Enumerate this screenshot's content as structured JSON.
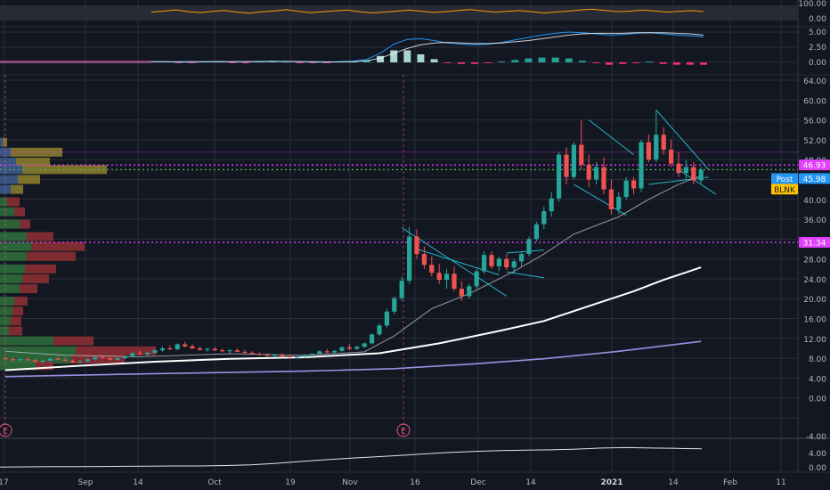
{
  "colors": {
    "background": "#131722",
    "grid": "#2a2e39",
    "axis_text": "#b2b5be",
    "up": "#26a69a",
    "down": "#ef5350",
    "hl_magenta": "#e040fb",
    "hl_green": "#4caf50",
    "hl_blue": "#2196f3",
    "hl_yellow": "#ffeb3b",
    "pattern": "#26c6da",
    "ma_white": "#ffffff",
    "ma_purple": "#9c8fe0",
    "rsi": "#ff9800",
    "macd": "#2196f3",
    "signal": "#ffffff"
  },
  "chart_data": {
    "type": "candlestick",
    "symbol": "BLNK",
    "x_tick_labels": [
      "17",
      "Sep",
      "14",
      "Oct",
      "19",
      "Nov",
      "16",
      "Dec",
      "14",
      "2021",
      "14",
      "Feb",
      "11"
    ],
    "price_axis_ticks": [
      "64.00",
      "60.00",
      "56.00",
      "52.00",
      "48.00",
      "44.00",
      "40.00",
      "36.00",
      "32.00",
      "28.00",
      "24.00",
      "20.00",
      "16.00",
      "12.00",
      "8.00",
      "4.00",
      "0.00",
      "-4.00"
    ],
    "price_ylim": [
      -4,
      64
    ],
    "rsi_axis_ticks": [
      "100.00",
      "0.00"
    ],
    "macd_axis_ticks": [
      "5.00",
      "2.50",
      "0.00"
    ],
    "bottom_axis_ticks": [
      "4.00",
      "0.00"
    ],
    "price_labels": [
      {
        "text": "46.93",
        "value": 46.93,
        "kind": "magenta"
      },
      {
        "text": "Post",
        "kind": "blue_tag"
      },
      {
        "text": "45.98",
        "value": 45.98,
        "kind": "blue"
      },
      {
        "text": "BLNK",
        "value": 43.5,
        "kind": "yellow"
      },
      {
        "text": "31.34",
        "value": 31.34,
        "kind": "magenta"
      }
    ],
    "horizontal_levels": [
      {
        "value": 46.93,
        "color": "#e040fb",
        "style": "dotted"
      },
      {
        "value": 45.98,
        "color": "#4caf50",
        "style": "dotted"
      },
      {
        "value": 31.34,
        "color": "#e040fb",
        "style": "dotted"
      },
      {
        "value": 49.5,
        "color": "#e040fb",
        "style": "faint"
      }
    ],
    "earnings_markers": [
      "E",
      "E"
    ],
    "candles": [
      [
        8.0,
        8.3,
        7.6,
        7.8
      ],
      [
        7.8,
        8.1,
        7.4,
        7.6
      ],
      [
        7.6,
        8.0,
        7.3,
        7.8
      ],
      [
        7.8,
        8.2,
        7.5,
        7.6
      ],
      [
        7.6,
        7.9,
        7.2,
        7.3
      ],
      [
        7.3,
        7.7,
        7.0,
        7.5
      ],
      [
        7.5,
        8.0,
        7.3,
        7.9
      ],
      [
        7.9,
        8.3,
        7.6,
        7.7
      ],
      [
        7.7,
        8.1,
        7.4,
        7.5
      ],
      [
        7.5,
        7.8,
        7.1,
        7.2
      ],
      [
        7.2,
        7.6,
        6.9,
        7.4
      ],
      [
        7.4,
        7.9,
        7.2,
        7.8
      ],
      [
        7.8,
        8.4,
        7.6,
        8.2
      ],
      [
        8.2,
        8.6,
        7.9,
        8.0
      ],
      [
        8.0,
        8.3,
        7.6,
        7.7
      ],
      [
        7.7,
        8.1,
        7.5,
        8.0
      ],
      [
        8.0,
        8.5,
        7.8,
        8.4
      ],
      [
        8.4,
        9.2,
        8.2,
        9.0
      ],
      [
        9.0,
        9.5,
        8.6,
        8.8
      ],
      [
        8.8,
        9.3,
        8.5,
        9.1
      ],
      [
        9.1,
        9.8,
        8.9,
        9.6
      ],
      [
        9.6,
        10.4,
        9.3,
        10.0
      ],
      [
        10.0,
        10.6,
        9.6,
        9.8
      ],
      [
        9.8,
        11.0,
        9.6,
        10.8
      ],
      [
        10.8,
        11.3,
        10.2,
        10.4
      ],
      [
        10.4,
        10.8,
        9.8,
        10.0
      ],
      [
        10.0,
        10.4,
        9.5,
        9.7
      ],
      [
        9.7,
        10.1,
        9.3,
        9.9
      ],
      [
        9.9,
        10.3,
        9.5,
        9.6
      ],
      [
        9.6,
        10.0,
        9.2,
        9.4
      ],
      [
        9.4,
        9.8,
        9.0,
        9.6
      ],
      [
        9.6,
        10.0,
        9.2,
        9.3
      ],
      [
        9.3,
        9.7,
        8.9,
        9.1
      ],
      [
        9.1,
        9.4,
        8.7,
        8.9
      ],
      [
        8.9,
        9.2,
        8.5,
        8.7
      ],
      [
        8.7,
        9.0,
        8.3,
        8.5
      ],
      [
        8.5,
        8.9,
        8.2,
        8.7
      ],
      [
        8.7,
        9.0,
        8.3,
        8.4
      ],
      [
        8.4,
        8.7,
        8.0,
        8.2
      ],
      [
        8.2,
        8.5,
        7.9,
        8.3
      ],
      [
        8.3,
        8.8,
        8.1,
        8.6
      ],
      [
        8.6,
        9.0,
        8.3,
        8.9
      ],
      [
        8.9,
        9.6,
        8.7,
        9.4
      ],
      [
        9.4,
        9.9,
        9.0,
        9.2
      ],
      [
        9.2,
        9.6,
        8.9,
        9.5
      ],
      [
        9.5,
        10.4,
        9.3,
        10.2
      ],
      [
        10.2,
        10.8,
        9.7,
        9.9
      ],
      [
        9.9,
        10.5,
        9.6,
        10.3
      ],
      [
        10.3,
        11.2,
        10.1,
        11.0
      ],
      [
        11.0,
        13.0,
        10.8,
        12.8
      ],
      [
        12.8,
        15.0,
        12.5,
        14.6
      ],
      [
        14.6,
        18.0,
        14.2,
        17.4
      ],
      [
        17.4,
        20.5,
        16.8,
        20.1
      ],
      [
        20.1,
        24.5,
        19.5,
        23.6
      ],
      [
        23.6,
        34.5,
        23.0,
        32.5
      ],
      [
        32.5,
        34.0,
        28.0,
        29.0
      ],
      [
        29.0,
        30.5,
        26.0,
        26.8
      ],
      [
        26.8,
        28.5,
        24.5,
        25.2
      ],
      [
        25.2,
        27.0,
        23.0,
        23.8
      ],
      [
        23.8,
        26.0,
        22.0,
        25.0
      ],
      [
        25.0,
        26.5,
        21.5,
        22.0
      ],
      [
        22.0,
        23.5,
        19.5,
        20.5
      ],
      [
        20.5,
        23.0,
        20.0,
        22.5
      ],
      [
        22.5,
        26.0,
        22.0,
        25.5
      ],
      [
        25.5,
        29.5,
        25.0,
        28.8
      ],
      [
        28.8,
        29.5,
        26.0,
        26.5
      ],
      [
        26.5,
        28.5,
        25.5,
        28.0
      ],
      [
        28.0,
        29.0,
        25.8,
        26.3
      ],
      [
        26.3,
        28.0,
        25.0,
        27.5
      ],
      [
        27.5,
        29.5,
        26.5,
        29.0
      ],
      [
        29.0,
        32.5,
        28.5,
        32.0
      ],
      [
        32.0,
        35.5,
        31.5,
        35.0
      ],
      [
        35.0,
        38.5,
        34.0,
        37.6
      ],
      [
        37.6,
        41.5,
        36.5,
        40.2
      ],
      [
        40.2,
        49.5,
        39.5,
        49.0
      ],
      [
        49.0,
        50.5,
        43.0,
        44.5
      ],
      [
        44.5,
        51.5,
        44.0,
        51.0
      ],
      [
        51.0,
        56.0,
        46.0,
        47.0
      ],
      [
        47.0,
        49.0,
        42.5,
        44.0
      ],
      [
        44.0,
        47.5,
        43.0,
        46.5
      ],
      [
        46.5,
        48.5,
        41.0,
        42.0
      ],
      [
        42.0,
        44.0,
        37.0,
        38.0
      ],
      [
        38.0,
        41.5,
        37.0,
        40.5
      ],
      [
        40.5,
        44.5,
        40.0,
        43.8
      ],
      [
        43.8,
        44.5,
        41.0,
        42.2
      ],
      [
        42.2,
        52.0,
        41.5,
        51.5
      ],
      [
        51.5,
        53.0,
        47.5,
        48.0
      ],
      [
        48.0,
        58.0,
        47.5,
        53.0
      ],
      [
        53.0,
        54.5,
        49.0,
        50.0
      ],
      [
        50.0,
        52.0,
        46.5,
        47.2
      ],
      [
        47.2,
        49.5,
        44.5,
        45.3
      ],
      [
        45.3,
        48.0,
        44.0,
        46.5
      ],
      [
        46.5,
        47.5,
        43.0,
        43.8
      ],
      [
        43.8,
        46.5,
        43.2,
        45.98
      ]
    ],
    "overlays": {
      "ma_fast": [
        [
          0,
          9.4
        ],
        [
          8,
          8.6
        ],
        [
          18,
          8.3
        ],
        [
          30,
          8.9
        ],
        [
          40,
          8.6
        ],
        [
          48,
          9.3
        ],
        [
          52,
          12.5
        ],
        [
          57,
          18.0
        ],
        [
          62,
          21.0
        ],
        [
          68,
          25.5
        ],
        [
          72,
          29.0
        ],
        [
          76,
          33.0
        ],
        [
          82,
          36.5
        ],
        [
          86,
          40.0
        ],
        [
          90,
          43.0
        ],
        [
          93,
          44.8
        ]
      ],
      "ma_white": [
        [
          0,
          5.6
        ],
        [
          10,
          6.5
        ],
        [
          20,
          7.3
        ],
        [
          30,
          7.9
        ],
        [
          40,
          8.2
        ],
        [
          50,
          9.0
        ],
        [
          58,
          11.0
        ],
        [
          66,
          13.5
        ],
        [
          72,
          15.5
        ],
        [
          78,
          18.5
        ],
        [
          84,
          21.5
        ],
        [
          88,
          23.8
        ],
        [
          93,
          26.3
        ]
      ],
      "ma_purple": [
        [
          0,
          4.3
        ],
        [
          20,
          4.9
        ],
        [
          40,
          5.4
        ],
        [
          52,
          5.9
        ],
        [
          62,
          6.8
        ],
        [
          72,
          7.9
        ],
        [
          82,
          9.4
        ],
        [
          93,
          11.4
        ]
      ]
    },
    "volume_profile": [
      {
        "price": 51.5,
        "up": 3,
        "down": 5
      },
      {
        "price": 49.5,
        "up": 12,
        "down": 58
      },
      {
        "price": 47.5,
        "up": 18,
        "down": 38
      },
      {
        "price": 46.0,
        "up": 25,
        "down": 95
      },
      {
        "price": 44.0,
        "up": 20,
        "down": 25
      },
      {
        "price": 42.0,
        "up": 12,
        "down": 14
      },
      {
        "price": 39.5,
        "up": 8,
        "down": 14
      },
      {
        "price": 37.5,
        "up": 16,
        "down": 12
      },
      {
        "price": 35.0,
        "up": 22,
        "down": 12
      },
      {
        "price": 32.5,
        "up": 30,
        "down": 30
      },
      {
        "price": 30.5,
        "up": 35,
        "down": 60
      },
      {
        "price": 28.5,
        "up": 30,
        "down": 55
      },
      {
        "price": 26.0,
        "up": 28,
        "down": 35
      },
      {
        "price": 24.0,
        "up": 25,
        "down": 30
      },
      {
        "price": 22.0,
        "up": 22,
        "down": 20
      },
      {
        "price": 19.5,
        "up": 16,
        "down": 15
      },
      {
        "price": 17.5,
        "up": 14,
        "down": 12
      },
      {
        "price": 15.5,
        "up": 12,
        "down": 12
      },
      {
        "price": 13.5,
        "up": 10,
        "down": 15
      },
      {
        "price": 11.5,
        "up": 60,
        "down": 45
      },
      {
        "price": 9.5,
        "up": 85,
        "down": 90
      },
      {
        "price": 7.8,
        "up": 80,
        "down": 60
      },
      {
        "price": 6.5,
        "up": 40,
        "down": 20
      }
    ],
    "rsi": [
      55,
      62,
      70,
      58,
      52,
      60,
      66,
      54,
      48,
      57,
      63,
      71,
      60,
      52,
      58,
      64,
      69,
      57,
      50,
      56,
      62,
      68,
      61,
      53,
      59,
      66,
      72,
      63,
      55,
      60,
      65,
      58,
      50,
      56,
      62,
      70,
      74,
      66,
      58,
      62,
      68,
      63,
      55,
      60,
      65,
      59
    ],
    "macd_line": [
      0.1,
      0.1,
      0.05,
      0.05,
      0.1,
      0.15,
      0.1,
      0.1,
      0.15,
      0.2,
      0.15,
      0.1,
      0.05,
      0.05,
      0.1,
      0.2,
      0.5,
      1.5,
      3.0,
      3.8,
      3.9,
      3.6,
      3.2,
      3.0,
      2.9,
      3.0,
      3.3,
      3.7,
      4.1,
      4.5,
      4.8,
      5.0,
      4.9,
      4.7,
      4.5,
      4.6,
      4.8,
      4.9,
      4.7,
      4.5,
      4.4,
      4.2
    ],
    "signal_line": [
      0.1,
      0.1,
      0.1,
      0.1,
      0.1,
      0.12,
      0.12,
      0.12,
      0.13,
      0.15,
      0.15,
      0.13,
      0.1,
      0.08,
      0.08,
      0.12,
      0.25,
      0.7,
      1.5,
      2.3,
      2.9,
      3.2,
      3.3,
      3.2,
      3.1,
      3.1,
      3.2,
      3.4,
      3.6,
      3.9,
      4.2,
      4.5,
      4.7,
      4.8,
      4.8,
      4.8,
      4.9,
      4.9,
      4.9,
      4.8,
      4.7,
      4.5
    ],
    "bottom_line": [
      0.2,
      0.25,
      0.3,
      0.3,
      0.35,
      0.4,
      0.45,
      0.5,
      0.5,
      0.6,
      0.8,
      1.2,
      1.7,
      2.2,
      2.6,
      3.0,
      3.4,
      3.8,
      4.2,
      4.5,
      4.7,
      4.8,
      4.9,
      5.1,
      5.4,
      5.5,
      5.4,
      5.3,
      5.2
    ]
  }
}
